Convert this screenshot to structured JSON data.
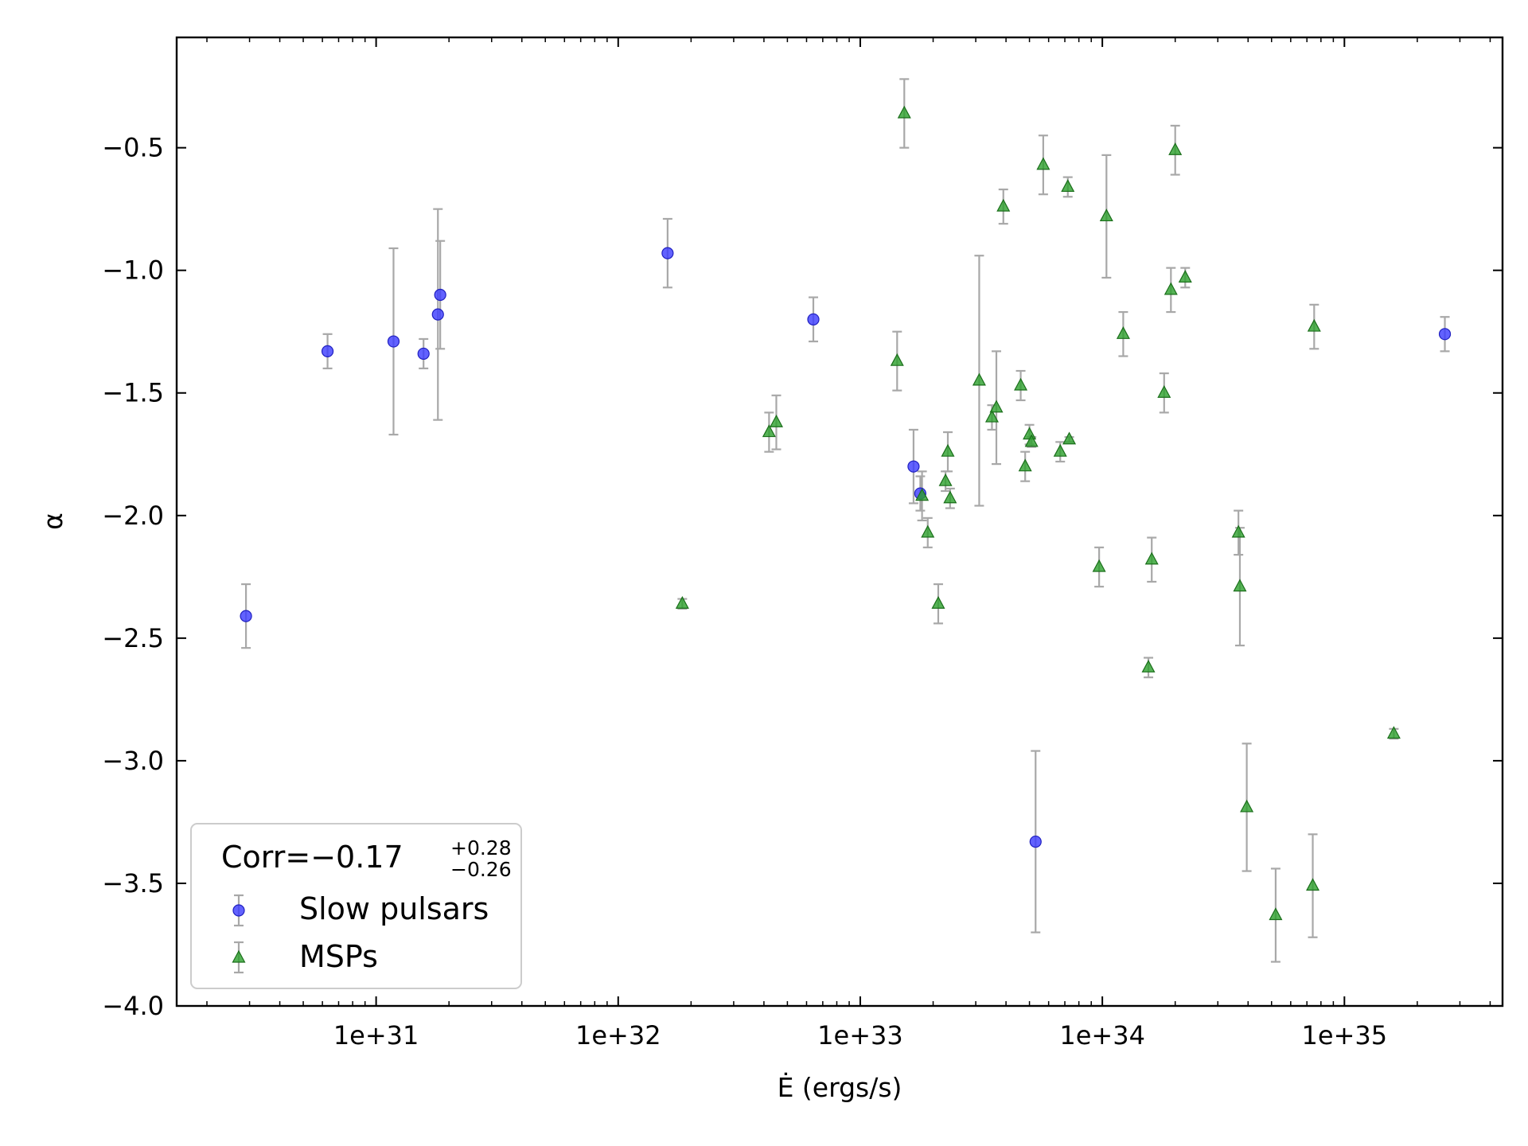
{
  "chart_data": {
    "type": "scatter",
    "xlabel": "Ė (ergs/s)",
    "ylabel": "α",
    "xscale": "log",
    "xlim": [
      1.5e+30,
      4.5e+35
    ],
    "ylim": [
      -4.0,
      -0.05
    ],
    "xtick_values": [
      1e+31,
      1e+32,
      1e+33,
      1e+34,
      1e+35
    ],
    "xtick_labels": [
      "1e+31",
      "1e+32",
      "1e+33",
      "1e+34",
      "1e+35"
    ],
    "ytick_values": [
      -0.5,
      -1.0,
      -1.5,
      -2.0,
      -2.5,
      -3.0,
      -3.5,
      -4.0
    ],
    "ytick_labels": [
      "−0.5",
      "−1.0",
      "−1.5",
      "−2.0",
      "−2.5",
      "−3.0",
      "−3.5",
      "−4.0"
    ],
    "grid": false,
    "legend_position": "lower-left",
    "legend": {
      "title_main": "Corr=−0.17",
      "title_sup": "+0.28",
      "title_sub": "−0.26"
    },
    "errorbar_color": "#a8a8a8",
    "series": [
      {
        "name": "Slow pulsars",
        "marker": "circle",
        "color": "#3b3bff",
        "edge": "#2020c0",
        "points": [
          {
            "x": 2.9e+30,
            "y": -2.41,
            "lo": 0.13,
            "hi": 0.13
          },
          {
            "x": 6.3e+30,
            "y": -1.33,
            "lo": 0.07,
            "hi": 0.07
          },
          {
            "x": 1.18e+31,
            "y": -1.29,
            "lo": 0.38,
            "hi": 0.38
          },
          {
            "x": 1.57e+31,
            "y": -1.34,
            "lo": 0.06,
            "hi": 0.06
          },
          {
            "x": 1.8e+31,
            "y": -1.18,
            "lo": 0.43,
            "hi": 0.43
          },
          {
            "x": 1.84e+31,
            "y": -1.1,
            "lo": 0.22,
            "hi": 0.22
          },
          {
            "x": 1.6e+32,
            "y": -0.93,
            "lo": 0.14,
            "hi": 0.14
          },
          {
            "x": 6.4e+32,
            "y": -1.2,
            "lo": 0.09,
            "hi": 0.09
          },
          {
            "x": 1.66e+33,
            "y": -1.8,
            "lo": 0.15,
            "hi": 0.15
          },
          {
            "x": 1.77e+33,
            "y": -1.91,
            "lo": 0.07,
            "hi": 0.07
          },
          {
            "x": 5.3e+33,
            "y": -3.33,
            "lo": 0.37,
            "hi": 0.37
          },
          {
            "x": 2.6e+35,
            "y": -1.26,
            "lo": 0.07,
            "hi": 0.07
          }
        ]
      },
      {
        "name": "MSPs",
        "marker": "triangle",
        "color": "#2ca02c",
        "edge": "#1a6e1a",
        "points": [
          {
            "x": 1.84e+32,
            "y": -2.36,
            "lo": 0.02,
            "hi": 0.02
          },
          {
            "x": 4.2e+32,
            "y": -1.66,
            "lo": 0.08,
            "hi": 0.08
          },
          {
            "x": 4.5e+32,
            "y": -1.62,
            "lo": 0.11,
            "hi": 0.11
          },
          {
            "x": 1.42e+33,
            "y": -1.37,
            "lo": 0.12,
            "hi": 0.12
          },
          {
            "x": 1.52e+33,
            "y": -0.36,
            "lo": 0.14,
            "hi": 0.14
          },
          {
            "x": 1.8e+33,
            "y": -1.92,
            "lo": 0.1,
            "hi": 0.1
          },
          {
            "x": 1.9e+33,
            "y": -2.07,
            "lo": 0.06,
            "hi": 0.06
          },
          {
            "x": 2.1e+33,
            "y": -2.36,
            "lo": 0.08,
            "hi": 0.08
          },
          {
            "x": 2.25e+33,
            "y": -1.86,
            "lo": 0.04,
            "hi": 0.04
          },
          {
            "x": 2.3e+33,
            "y": -1.74,
            "lo": 0.08,
            "hi": 0.08
          },
          {
            "x": 2.35e+33,
            "y": -1.93,
            "lo": 0.04,
            "hi": 0.04
          },
          {
            "x": 3.1e+33,
            "y": -1.45,
            "lo": 0.51,
            "hi": 0.51
          },
          {
            "x": 3.5e+33,
            "y": -1.6,
            "lo": 0.05,
            "hi": 0.05
          },
          {
            "x": 3.65e+33,
            "y": -1.56,
            "lo": 0.23,
            "hi": 0.23
          },
          {
            "x": 3.9e+33,
            "y": -0.74,
            "lo": 0.07,
            "hi": 0.07
          },
          {
            "x": 4.6e+33,
            "y": -1.47,
            "lo": 0.06,
            "hi": 0.06
          },
          {
            "x": 4.8e+33,
            "y": -1.8,
            "lo": 0.06,
            "hi": 0.06
          },
          {
            "x": 5e+33,
            "y": -1.67,
            "lo": 0.04,
            "hi": 0.04
          },
          {
            "x": 5.1e+33,
            "y": -1.7,
            "lo": 0.02,
            "hi": 0.02
          },
          {
            "x": 5.7e+33,
            "y": -0.57,
            "lo": 0.12,
            "hi": 0.12
          },
          {
            "x": 6.7e+33,
            "y": -1.74,
            "lo": 0.04,
            "hi": 0.04
          },
          {
            "x": 7.2e+33,
            "y": -0.66,
            "lo": 0.04,
            "hi": 0.04
          },
          {
            "x": 7.3e+33,
            "y": -1.69,
            "lo": 0.01,
            "hi": 0.01
          },
          {
            "x": 9.7e+33,
            "y": -2.21,
            "lo": 0.08,
            "hi": 0.08
          },
          {
            "x": 1.04e+34,
            "y": -0.78,
            "lo": 0.25,
            "hi": 0.25
          },
          {
            "x": 1.22e+34,
            "y": -1.26,
            "lo": 0.09,
            "hi": 0.09
          },
          {
            "x": 1.55e+34,
            "y": -2.62,
            "lo": 0.04,
            "hi": 0.04
          },
          {
            "x": 1.6e+34,
            "y": -2.18,
            "lo": 0.09,
            "hi": 0.09
          },
          {
            "x": 1.8e+34,
            "y": -1.5,
            "lo": 0.08,
            "hi": 0.08
          },
          {
            "x": 1.92e+34,
            "y": -1.08,
            "lo": 0.09,
            "hi": 0.09
          },
          {
            "x": 2e+34,
            "y": -0.51,
            "lo": 0.1,
            "hi": 0.1
          },
          {
            "x": 2.2e+34,
            "y": -1.03,
            "lo": 0.04,
            "hi": 0.04
          },
          {
            "x": 3.65e+34,
            "y": -2.07,
            "lo": 0.09,
            "hi": 0.09
          },
          {
            "x": 3.7e+34,
            "y": -2.29,
            "lo": 0.24,
            "hi": 0.24
          },
          {
            "x": 3.95e+34,
            "y": -3.19,
            "lo": 0.26,
            "hi": 0.26
          },
          {
            "x": 5.2e+34,
            "y": -3.63,
            "lo": 0.19,
            "hi": 0.19
          },
          {
            "x": 7.4e+34,
            "y": -3.51,
            "lo": 0.21,
            "hi": 0.21
          },
          {
            "x": 7.5e+34,
            "y": -1.23,
            "lo": 0.09,
            "hi": 0.09
          },
          {
            "x": 1.6e+35,
            "y": -2.89,
            "lo": 0.02,
            "hi": 0.02
          }
        ]
      }
    ]
  }
}
